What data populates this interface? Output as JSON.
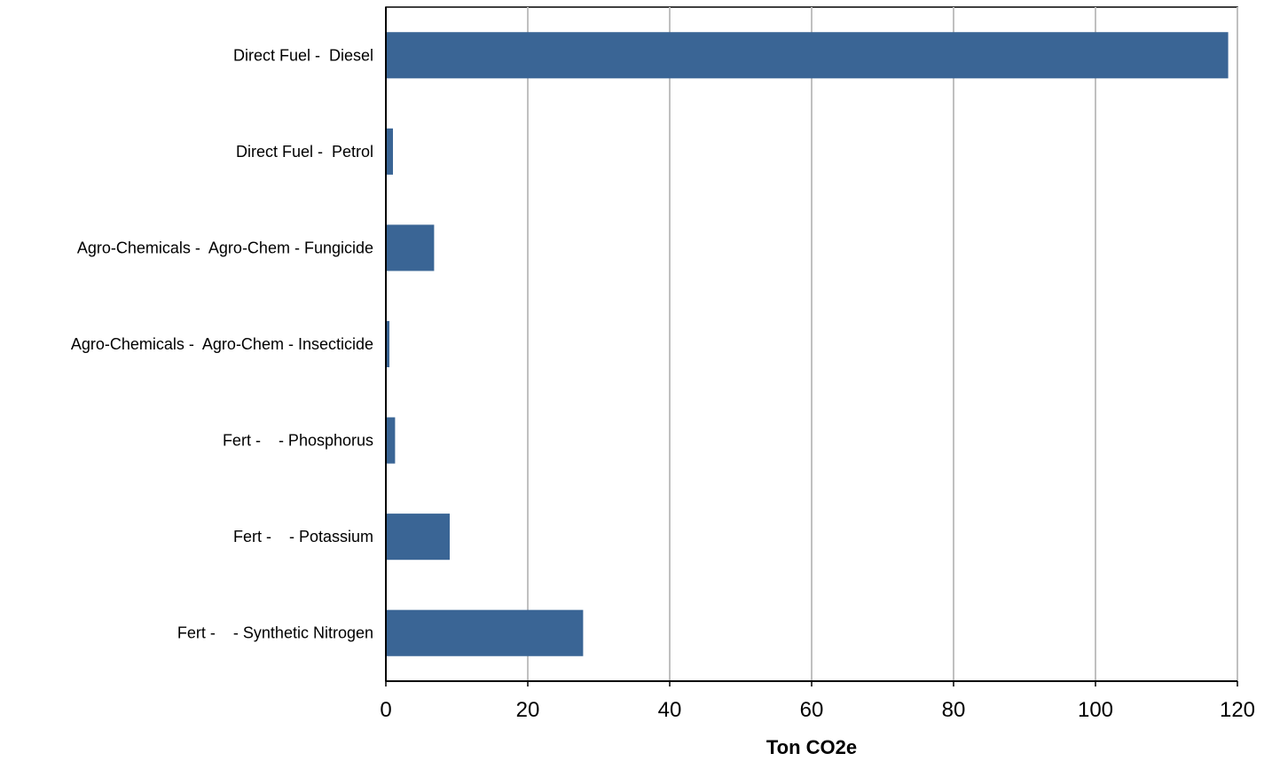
{
  "chart_data": {
    "type": "bar",
    "orientation": "horizontal",
    "categories": [
      "Direct Fuel -  Diesel",
      "Direct Fuel -  Petrol",
      "Agro-Chemicals -  Agro-Chem - Fungicide",
      "Agro-Chemicals -  Agro-Chem - Insecticide",
      "Fert -    - Phosphorus",
      "Fert -    - Potassium",
      "Fert -    - Synthetic Nitrogen"
    ],
    "values": [
      118.7,
      1.0,
      6.8,
      0.5,
      1.3,
      9.0,
      27.8
    ],
    "xlabel": "Ton CO2e",
    "ylabel": "",
    "xlim": [
      0,
      120
    ],
    "x_ticks": [
      "0",
      "20",
      "40",
      "60",
      "80",
      "100",
      "120"
    ],
    "grid": "vertical",
    "bar_color": "#3a6595",
    "grid_color": "#c0c0c0"
  }
}
